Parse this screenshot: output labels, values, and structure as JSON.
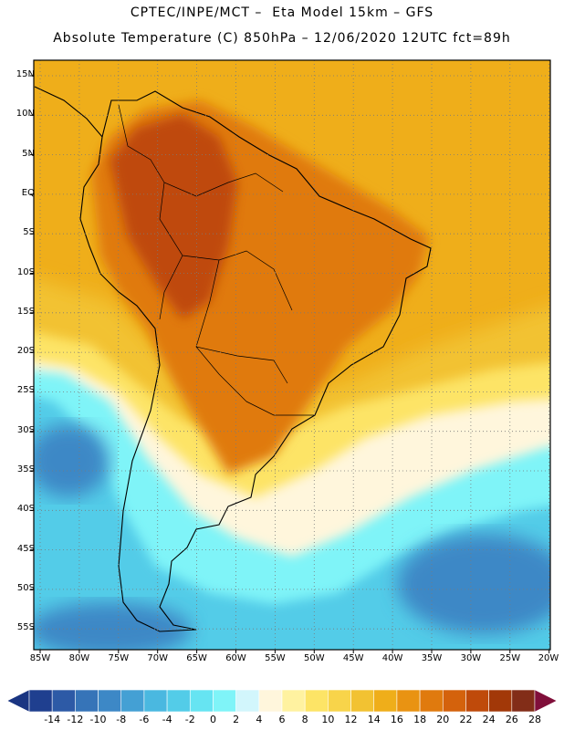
{
  "header": {
    "line1": "CPTEC/INPE/MCT –  Eta Model 15km – GFS",
    "line2": "Absolute Temperature (C) 850hPa – 12/06/2020 12UTC fct=89h"
  },
  "axes": {
    "lat_labels": [
      "15N",
      "10N",
      "5N",
      "EQ",
      "5S",
      "10S",
      "15S",
      "20S",
      "25S",
      "30S",
      "35S",
      "40S",
      "45S",
      "50S",
      "55S"
    ],
    "lon_labels": [
      "85W",
      "80W",
      "75W",
      "70W",
      "65W",
      "60W",
      "55W",
      "50W",
      "45W",
      "40W",
      "35W",
      "30W",
      "25W",
      "20W"
    ]
  },
  "colorbar": {
    "labels": [
      "-14",
      "-12",
      "-10",
      "-8",
      "-6",
      "-4",
      "-2",
      "0",
      "2",
      "4",
      "6",
      "8",
      "10",
      "12",
      "14",
      "16",
      "18",
      "20",
      "22",
      "24",
      "26",
      "28"
    ],
    "colors": [
      "#1f3f8f",
      "#2d5aa6",
      "#3674b8",
      "#3d88c6",
      "#44a0d4",
      "#4ab8e0",
      "#53cce8",
      "#66e4f2",
      "#7ff4f8",
      "#d2f6fc",
      "#fff6dc",
      "#fff2a0",
      "#fde466",
      "#f8d44a",
      "#f2c232",
      "#efae1a",
      "#e99312",
      "#e07a0e",
      "#d4620c",
      "#bf4a0a",
      "#a23808",
      "#822d18"
    ],
    "under_color": "#1a3582",
    "over_color": "#800f3a"
  },
  "map": {
    "ocean_bands": [
      {
        "name": "tropical-warm",
        "color": "#efae1a"
      },
      {
        "name": "subtropical",
        "color": "#f2c232"
      },
      {
        "name": "mid-lat-warm",
        "color": "#fde466"
      },
      {
        "name": "front-pale",
        "color": "#fff6dc"
      },
      {
        "name": "cool-cyan",
        "color": "#7ff4f8"
      },
      {
        "name": "cold",
        "color": "#53cce8"
      },
      {
        "name": "colder",
        "color": "#3d88c6"
      }
    ],
    "land_color": "#e07a0e",
    "hot_core_color": "#bf4a0a",
    "coast_color": "#000000",
    "grid_color": "#7a7a7a"
  }
}
